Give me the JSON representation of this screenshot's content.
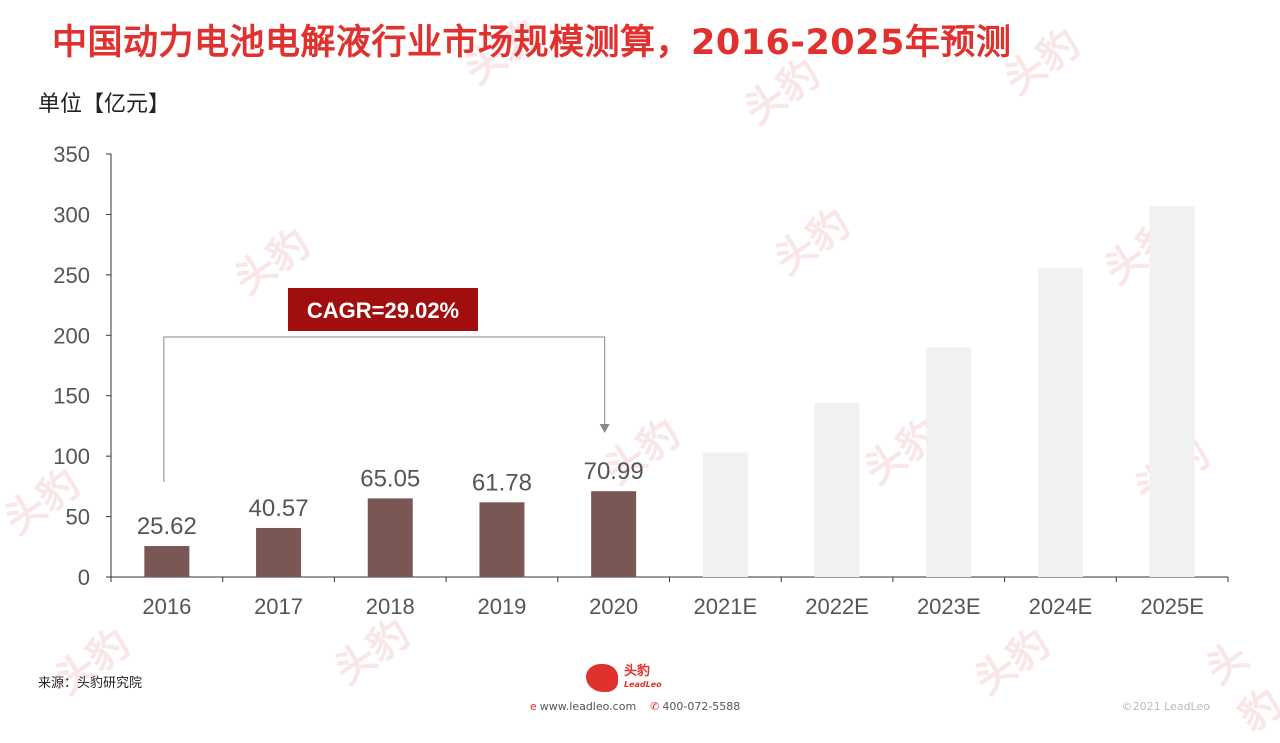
{
  "title": "中国动力电池电解液行业市场规模测算，2016-2025年预测",
  "unit": "单位【亿元】",
  "source": "来源：头豹研究院",
  "footer": {
    "logo_text": "头豹",
    "logo_sub": "LeadLeo",
    "website": "www.leadleo.com",
    "phone": "400-072-5588",
    "copyright": "©2021 LeadLeo"
  },
  "colors": {
    "actual": "#7a5655",
    "forecast": "#f1f1f1",
    "title": "#e0312e",
    "cagr_bg": "#a10e0e"
  },
  "chart_data": {
    "type": "bar",
    "categories": [
      "2016",
      "2017",
      "2018",
      "2019",
      "2020",
      "2021E",
      "2022E",
      "2023E",
      "2024E",
      "2025E"
    ],
    "values": [
      25.62,
      40.57,
      65.05,
      61.78,
      70.99,
      103,
      144,
      190,
      256,
      307
    ],
    "labels": [
      "25.62",
      "40.57",
      "65.05",
      "61.78",
      "70.99",
      "",
      "",
      "",
      "",
      ""
    ],
    "forecast_from_index": 5,
    "ylim": [
      0,
      350
    ],
    "yticks": [
      0,
      50,
      100,
      150,
      200,
      250,
      300,
      350
    ],
    "annotation": {
      "text": "CAGR=29.02%",
      "from": "2016",
      "to": "2020"
    },
    "grid": false,
    "legend": "none"
  }
}
